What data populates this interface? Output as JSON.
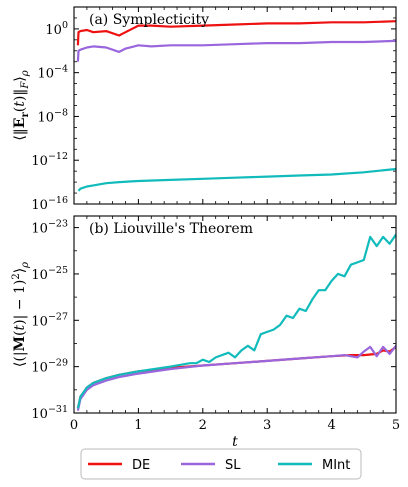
{
  "chart_data": [
    {
      "type": "line",
      "title": "(a) Symplecticity",
      "ylabel": "⟨‖E_r(t)‖_F⟩_ρ",
      "xlabel": "",
      "xlim": [
        0,
        5
      ],
      "ylim_exp": [
        -16,
        2
      ],
      "yscale": "log",
      "yticks": [
        {
          "exp": 0,
          "label": "10^0"
        },
        {
          "exp": -4,
          "label": "10^-4"
        },
        {
          "exp": -8,
          "label": "10^-8"
        },
        {
          "exp": -12,
          "label": "10^-12"
        },
        {
          "exp": -16,
          "label": "10^-16"
        }
      ],
      "series": [
        {
          "name": "DE",
          "color": "#ee1111",
          "x": [
            0.06,
            0.07,
            0.1,
            0.2,
            0.3,
            0.5,
            0.7,
            0.8,
            1.0,
            1.2,
            1.5,
            2.0,
            2.5,
            3.0,
            3.5,
            4.0,
            4.5,
            5.0
          ],
          "y_exp": [
            -1.5,
            -0.3,
            -0.2,
            -0.1,
            -0.3,
            -0.2,
            -0.6,
            -0.3,
            0.3,
            0.3,
            0.2,
            0.3,
            0.4,
            0.5,
            0.5,
            0.6,
            0.6,
            0.7
          ]
        },
        {
          "name": "SL",
          "color": "#9966dd",
          "x": [
            0.06,
            0.07,
            0.1,
            0.2,
            0.3,
            0.5,
            0.7,
            0.8,
            1.0,
            1.2,
            1.5,
            2.0,
            2.5,
            3.0,
            3.5,
            4.0,
            4.5,
            5.0
          ],
          "y_exp": [
            -3.0,
            -2.0,
            -1.9,
            -1.7,
            -1.6,
            -1.7,
            -2.1,
            -1.8,
            -1.5,
            -1.6,
            -1.5,
            -1.5,
            -1.4,
            -1.3,
            -1.3,
            -1.2,
            -1.2,
            -1.1
          ]
        },
        {
          "name": "MInt",
          "color": "#11bbbb",
          "x": [
            0.07,
            0.1,
            0.2,
            0.3,
            0.5,
            0.7,
            1.0,
            1.5,
            2.0,
            2.5,
            3.0,
            3.5,
            4.0,
            4.5,
            5.0
          ],
          "y_exp": [
            -14.8,
            -14.6,
            -14.4,
            -14.3,
            -14.1,
            -14.0,
            -13.9,
            -13.8,
            -13.7,
            -13.6,
            -13.5,
            -13.4,
            -13.3,
            -13.1,
            -12.8
          ]
        }
      ]
    },
    {
      "type": "line",
      "title": "(b) Liouville's Theorem",
      "ylabel": "⟨(|M(t)| − 1)²⟩_ρ",
      "xlabel": "t",
      "xlim": [
        0,
        5
      ],
      "ylim_exp": [
        -31,
        -22.5
      ],
      "yscale": "log",
      "xticks": [
        0,
        1,
        2,
        3,
        4,
        5
      ],
      "yticks": [
        {
          "exp": -23,
          "label": "10^-23"
        },
        {
          "exp": -25,
          "label": "10^-25"
        },
        {
          "exp": -27,
          "label": "10^-27"
        },
        {
          "exp": -29,
          "label": "10^-29"
        },
        {
          "exp": -31,
          "label": "10^-31"
        }
      ],
      "series": [
        {
          "name": "DE",
          "color": "#ee1111",
          "x": [
            0.06,
            0.1,
            0.2,
            0.3,
            0.5,
            0.7,
            1.0,
            1.5,
            2.0,
            2.5,
            3.0,
            3.5,
            4.0,
            4.3,
            4.5,
            4.7,
            4.8,
            4.9,
            5.0
          ],
          "y_exp": [
            -30.8,
            -30.3,
            -29.9,
            -29.7,
            -29.5,
            -29.35,
            -29.2,
            -29.05,
            -28.95,
            -28.85,
            -28.75,
            -28.65,
            -28.55,
            -28.5,
            -28.5,
            -28.45,
            -28.3,
            -28.35,
            -28.15
          ]
        },
        {
          "name": "SL",
          "color": "#9966dd",
          "x": [
            0.06,
            0.1,
            0.2,
            0.3,
            0.5,
            0.7,
            1.0,
            1.5,
            2.0,
            2.5,
            3.0,
            3.5,
            4.0,
            4.2,
            4.4,
            4.5,
            4.6,
            4.7,
            4.8,
            4.9,
            5.0
          ],
          "y_exp": [
            -30.9,
            -30.4,
            -30.0,
            -29.8,
            -29.6,
            -29.45,
            -29.3,
            -29.1,
            -28.95,
            -28.85,
            -28.75,
            -28.65,
            -28.55,
            -28.5,
            -28.6,
            -28.35,
            -28.15,
            -28.55,
            -28.15,
            -28.45,
            -28.1
          ]
        },
        {
          "name": "MInt",
          "color": "#11bbbb",
          "x": [
            0.06,
            0.1,
            0.2,
            0.3,
            0.5,
            0.7,
            1.0,
            1.5,
            1.8,
            1.9,
            2.0,
            2.1,
            2.2,
            2.4,
            2.5,
            2.6,
            2.7,
            2.8,
            2.9,
            3.0,
            3.1,
            3.2,
            3.3,
            3.4,
            3.5,
            3.6,
            3.7,
            3.8,
            3.9,
            4.0,
            4.1,
            4.2,
            4.3,
            4.4,
            4.5,
            4.6,
            4.7,
            4.8,
            4.9,
            5.0
          ],
          "y_exp": [
            -30.8,
            -30.3,
            -29.9,
            -29.7,
            -29.5,
            -29.35,
            -29.2,
            -29.0,
            -28.85,
            -28.85,
            -28.7,
            -28.8,
            -28.6,
            -28.4,
            -28.6,
            -28.3,
            -28.1,
            -28.3,
            -27.6,
            -27.5,
            -27.4,
            -27.2,
            -26.8,
            -26.9,
            -26.5,
            -26.6,
            -26.1,
            -25.7,
            -25.7,
            -25.3,
            -25.0,
            -25.1,
            -24.6,
            -24.5,
            -24.4,
            -23.4,
            -23.8,
            -23.4,
            -23.7,
            -23.3
          ]
        }
      ]
    }
  ],
  "legend": {
    "items": [
      {
        "label": "DE",
        "color": "#ee1111"
      },
      {
        "label": "SL",
        "color": "#9966dd"
      },
      {
        "label": "MInt",
        "color": "#11bbbb"
      }
    ]
  }
}
